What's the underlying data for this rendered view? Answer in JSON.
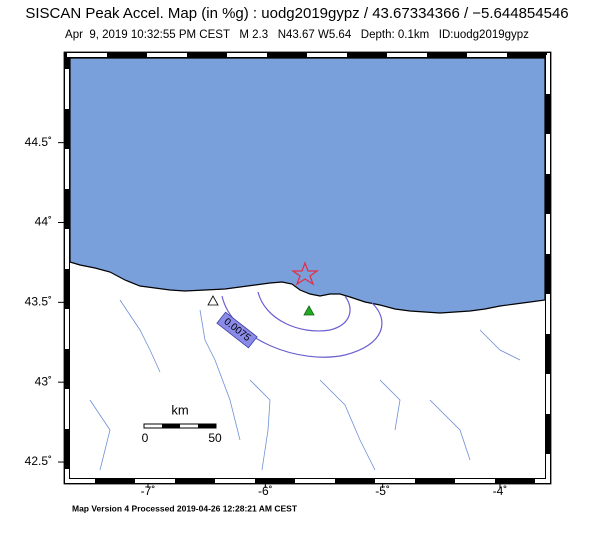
{
  "title": "SISCAN Peak Accel. Map (in %g) : uodg2019gypz / 43.67334366 / −5.644854546",
  "subtitle": "Apr  9, 2019 10:32:55 PM CEST   M 2.3   N43.67 W5.64   Depth: 0.1km   ID:uodg2019gypz",
  "footer": "Map Version 4 Processed 2019-04-26 12:28:21 AM CEST",
  "xlim": [
    -7.665,
    -3.616
  ],
  "ylim": [
    42.4,
    45.03
  ],
  "lat_ticks": [
    {
      "value": 44.5,
      "label": "44.5˚"
    },
    {
      "value": 44,
      "label": "44˚"
    },
    {
      "value": 43.5,
      "label": "43.5˚"
    },
    {
      "value": 43,
      "label": "43˚"
    },
    {
      "value": 42.5,
      "label": "42.5˚"
    }
  ],
  "lon_ticks": [
    {
      "value": -7,
      "label": "-7˚"
    },
    {
      "value": -6,
      "label": "-6˚"
    },
    {
      "value": -5,
      "label": "-5˚"
    },
    {
      "value": -4,
      "label": "-4˚"
    }
  ],
  "scale_bar": {
    "unit": "km",
    "start": "0",
    "end": "50"
  },
  "contour_label": "0.0075"
}
